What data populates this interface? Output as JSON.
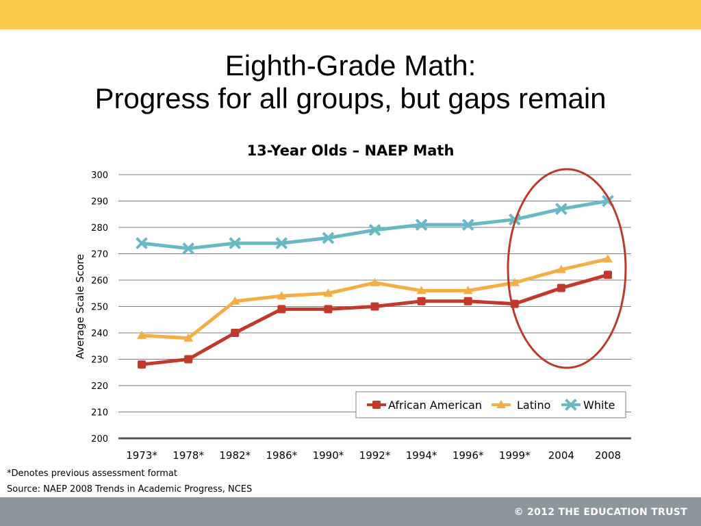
{
  "slide": {
    "title_line1": "Eighth-Grade Math:",
    "title_line2": "Progress for all groups, but gaps remain",
    "footnote": "*Denotes previous assessment format",
    "source": "Source: NAEP 2008 Trends in Academic Progress, NCES",
    "copyright": "© 2012 THE EDUCATION TRUST"
  },
  "colors": {
    "top_bar": "#FDCB4E",
    "bottom_bar": "#8C979D",
    "highlight_circle": "#BC3A2A"
  },
  "chart_data": {
    "type": "line",
    "title": "13-Year Olds – NAEP Math",
    "xlabel": "",
    "ylabel": "Average Scale Score",
    "categories": [
      "1973*",
      "1978*",
      "1982*",
      "1986*",
      "1990*",
      "1992*",
      "1994*",
      "1996*",
      "1999*",
      "2004",
      "2008"
    ],
    "ylim": [
      200,
      300
    ],
    "yticks": [
      200,
      210,
      220,
      230,
      240,
      250,
      260,
      270,
      280,
      290,
      300
    ],
    "grid": true,
    "legend_position": "bottom-right",
    "highlight": "circle around 1999*–2008",
    "series": [
      {
        "name": "African American",
        "color": "#C0392B",
        "marker": "square",
        "values": [
          228,
          230,
          240,
          249,
          249,
          250,
          252,
          252,
          251,
          257,
          262
        ]
      },
      {
        "name": "Latino",
        "color": "#F5AE45",
        "marker": "triangle",
        "values": [
          239,
          238,
          252,
          254,
          255,
          259,
          256,
          256,
          259,
          264,
          268
        ]
      },
      {
        "name": "White",
        "color": "#68B8C6",
        "marker": "x",
        "values": [
          274,
          272,
          274,
          274,
          276,
          279,
          281,
          281,
          283,
          287,
          290
        ]
      }
    ]
  }
}
